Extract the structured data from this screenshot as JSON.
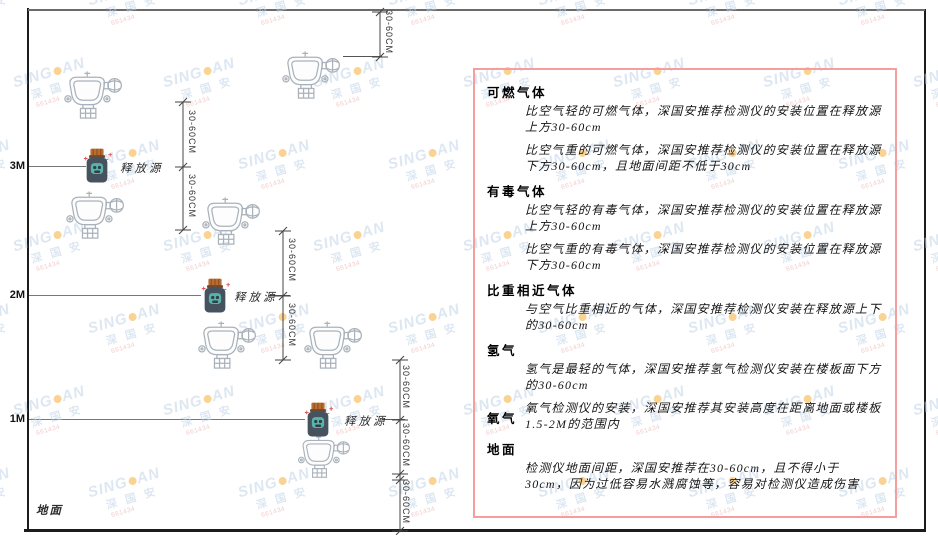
{
  "diagram": {
    "height_labels": [
      "3M",
      "2M",
      "1M"
    ],
    "ground_label": "地面",
    "release_source_label": "释放源",
    "dim_label": "30-60CM"
  },
  "panel": {
    "sections": [
      {
        "heading": "可燃气体",
        "paragraphs": [
          "比空气轻的可燃气体，深国安推荐检测仪的安装位置在释放源上方30-60cm",
          "比空气重的可燃气体，深国安推荐检测仪的安装位置在释放源下方30-60cm，且地面间距不低于30cm"
        ]
      },
      {
        "heading": "有毒气体",
        "paragraphs": [
          "比空气轻的有毒气体，深国安推荐检测仪的安装位置在释放源上方30-60cm",
          "比空气重的有毒气体，深国安推荐检测仪的安装位置在释放源下方30-60cm"
        ]
      },
      {
        "heading": "比重相近气体",
        "paragraphs": [
          "与空气比重相近的气体，深国安推荐检测仪安装在释放源上下的30-60cm"
        ]
      },
      {
        "heading": "氢气",
        "paragraphs": [
          "氢气是最轻的气体，深国安推荐氢气检测仪安装在楼板面下方的30-60cm"
        ]
      },
      {
        "heading": "氧气",
        "inline": true,
        "paragraphs": [
          "氧气检测仪的安装，深国安推荐其安装高度在距离地面或楼板1.5-2M的范围内"
        ]
      },
      {
        "heading": "地面",
        "paragraphs": [
          "检测仪地面间距，深国安推荐在30-60cm，且不得小于30cm，因为过低容易水溅腐蚀等，容易对检测仪造成伤害"
        ]
      }
    ]
  },
  "watermark": {
    "brand_left": "SING",
    "brand_right": "AN",
    "cn": "深 国 安",
    "code": "661434"
  },
  "colors": {
    "panel_border": "#f59e9e",
    "watermark_blue": "#c2d4e8",
    "watermark_red": "#e9a0a0",
    "watermark_dot": "#f5a623",
    "jar_body": "#46535f",
    "jar_cap": "#b96d31",
    "jar_face": "#58b4a9",
    "detector_outline": "#a9b2ba",
    "line_dark": "#444444"
  }
}
